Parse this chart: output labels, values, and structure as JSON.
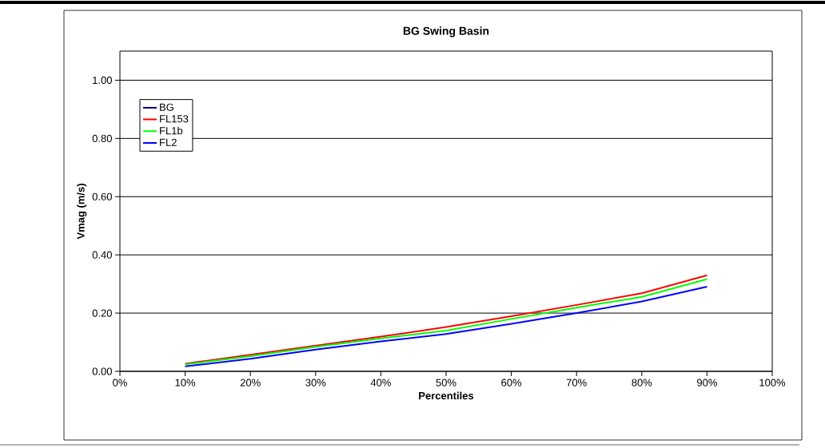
{
  "chart_data": {
    "type": "line",
    "title": "BG Swing Basin",
    "xlabel": "Percentiles",
    "ylabel": "Vmag (m/s)",
    "x": [
      10,
      20,
      30,
      40,
      50,
      60,
      70,
      80,
      90
    ],
    "series": [
      {
        "name": "BG",
        "color": "#000080",
        "values": [
          null,
          null,
          null,
          null,
          null,
          null,
          null,
          null,
          null
        ]
      },
      {
        "name": "FL153",
        "color": "#ff0000",
        "values": [
          0.026,
          0.057,
          0.088,
          0.119,
          0.152,
          0.189,
          0.228,
          0.268,
          0.33
        ]
      },
      {
        "name": "FL1b",
        "color": "#00ff00",
        "values": [
          0.024,
          0.052,
          0.084,
          0.113,
          0.14,
          0.18,
          0.219,
          0.256,
          0.317
        ]
      },
      {
        "name": "FL2",
        "color": "#0000ff",
        "values": [
          0.017,
          0.043,
          0.075,
          0.103,
          0.128,
          0.163,
          0.2,
          0.24,
          0.291
        ]
      }
    ],
    "xlim": [
      0,
      100
    ],
    "xticks": [
      {
        "value": 0,
        "label": "0%"
      },
      {
        "value": 10,
        "label": "10%"
      },
      {
        "value": 20,
        "label": "20%"
      },
      {
        "value": 30,
        "label": "30%"
      },
      {
        "value": 40,
        "label": "40%"
      },
      {
        "value": 50,
        "label": "50%"
      },
      {
        "value": 60,
        "label": "60%"
      },
      {
        "value": 70,
        "label": "70%"
      },
      {
        "value": 80,
        "label": "80%"
      },
      {
        "value": 90,
        "label": "90%"
      },
      {
        "value": 100,
        "label": "100%"
      }
    ],
    "ylim": [
      0,
      1.1
    ],
    "yticks": [
      {
        "value": 0,
        "label": "0.00"
      },
      {
        "value": 0.2,
        "label": "0.20"
      },
      {
        "value": 0.4,
        "label": "0.40"
      },
      {
        "value": 0.6,
        "label": "0.60"
      },
      {
        "value": 0.8,
        "label": "0.80"
      },
      {
        "value": 1.0,
        "label": "1.00"
      }
    ],
    "grid": "y",
    "legend": "top left",
    "marker": "none",
    "line_style": "solid"
  }
}
